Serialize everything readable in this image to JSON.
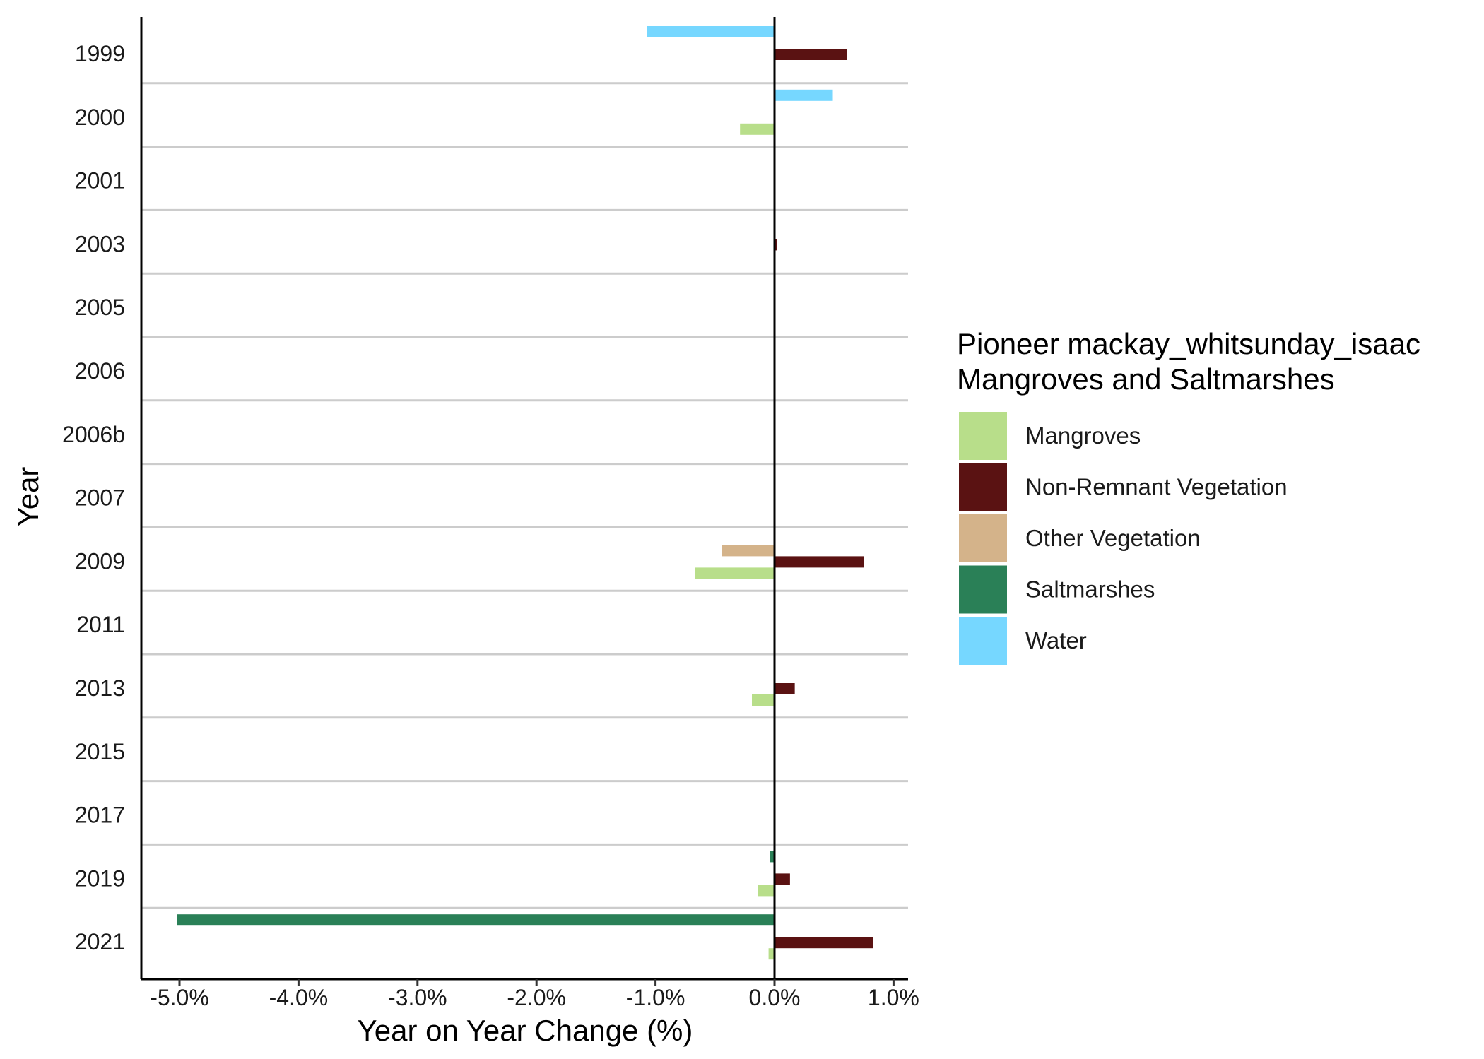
{
  "chart_data": {
    "type": "bar",
    "orientation": "horizontal",
    "title": "",
    "xlabel": "Year on Year Change (%)",
    "ylabel": "Year",
    "xlim": [
      -5.3,
      1.1
    ],
    "xticks": [
      -5.0,
      -4.0,
      -3.0,
      -2.0,
      -1.0,
      0.0,
      1.0
    ],
    "xtick_labels": [
      "-5.0%",
      "-4.0%",
      "-3.0%",
      "-2.0%",
      "-1.0%",
      "0.0%",
      "1.0%"
    ],
    "categories": [
      "1999",
      "2000",
      "2001",
      "2003",
      "2005",
      "2006",
      "2006b",
      "2007",
      "2009",
      "2011",
      "2013",
      "2015",
      "2017",
      "2019",
      "2021"
    ],
    "series": [
      {
        "name": "Water",
        "color": "#76D7FF",
        "values": [
          -1.07,
          0.49,
          0,
          0,
          0,
          0,
          0,
          0,
          0,
          0,
          0,
          0,
          0,
          0,
          0
        ]
      },
      {
        "name": "Saltmarshes",
        "color": "#2A8057",
        "values": [
          0,
          0,
          0,
          0,
          0,
          0,
          0,
          0,
          0,
          0,
          0,
          0,
          0,
          -0.04,
          -5.02
        ]
      },
      {
        "name": "Other Vegetation",
        "color": "#D4B38A",
        "values": [
          0,
          0,
          0,
          0,
          0,
          0,
          0,
          0,
          -0.44,
          0,
          0,
          0,
          0,
          0,
          0
        ]
      },
      {
        "name": "Non-Remnant Vegetation",
        "color": "#5A1212",
        "values": [
          0.61,
          0,
          0,
          0.02,
          0,
          0,
          0,
          0,
          0.75,
          0,
          0.17,
          0,
          0,
          0.13,
          0.83
        ]
      },
      {
        "name": "Mangroves",
        "color": "#B8DE8A",
        "values": [
          0,
          -0.29,
          0,
          0,
          0,
          0,
          0,
          0,
          -0.67,
          0,
          -0.19,
          0,
          0,
          -0.14,
          -0.05
        ]
      }
    ],
    "grid": "horizontal separators between year groups",
    "legend": {
      "title_lines": [
        "Pioneer mackay_whitsunday_isaac",
        "Mangroves and Saltmarshes"
      ],
      "position": "right",
      "items": [
        {
          "label": "Mangroves",
          "color": "#B8DE8A"
        },
        {
          "label": "Non-Remnant Vegetation",
          "color": "#5A1212"
        },
        {
          "label": "Other Vegetation",
          "color": "#D4B38A"
        },
        {
          "label": "Saltmarshes",
          "color": "#2A8057"
        },
        {
          "label": "Water",
          "color": "#76D7FF"
        }
      ]
    }
  }
}
